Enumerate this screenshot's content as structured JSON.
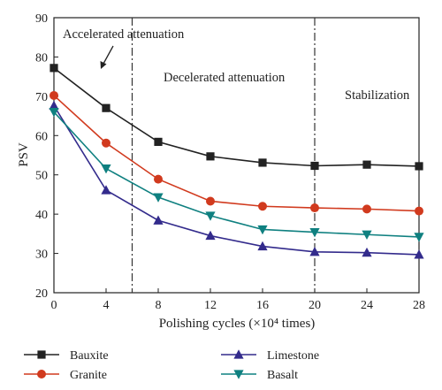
{
  "chart_data": {
    "type": "line",
    "x": [
      0,
      4,
      8,
      12,
      16,
      20,
      24,
      28
    ],
    "xlabel": "Polishing cycles (×10⁴ times)",
    "ylabel": "PSV",
    "xlim": [
      0,
      28
    ],
    "ylim": [
      20,
      90
    ],
    "xticks": [
      "0",
      "4",
      "8",
      "12",
      "16",
      "20",
      "24",
      "28"
    ],
    "yticks": [
      "20",
      "30",
      "40",
      "50",
      "60",
      "70",
      "80",
      "90"
    ],
    "grid": false,
    "legend_position": "bottom",
    "series": [
      {
        "name": "Bauxite",
        "values": [
          77.2,
          67.0,
          58.4,
          54.7,
          53.1,
          52.3,
          52.6,
          52.2
        ],
        "color": "#222222",
        "marker": "square"
      },
      {
        "name": "Granite",
        "values": [
          70.2,
          58.1,
          48.9,
          43.3,
          42.0,
          41.6,
          41.3,
          40.8
        ],
        "color": "#d13a1e",
        "marker": "circle"
      },
      {
        "name": "Limestone",
        "values": [
          67.6,
          46.1,
          38.4,
          34.5,
          31.8,
          30.4,
          30.2,
          29.7
        ],
        "color": "#332b8c",
        "marker": "triangle-up"
      },
      {
        "name": "Basalt",
        "values": [
          66.0,
          51.6,
          44.3,
          39.6,
          36.1,
          35.4,
          34.8,
          34.2
        ],
        "color": "#0f8080",
        "marker": "triangle-down"
      }
    ],
    "vlines": [
      6,
      20
    ],
    "annotations": [
      {
        "text": "Accelerated attenuation"
      },
      {
        "text": "Decelerated attenuation"
      },
      {
        "text": "Stabilization"
      }
    ]
  }
}
